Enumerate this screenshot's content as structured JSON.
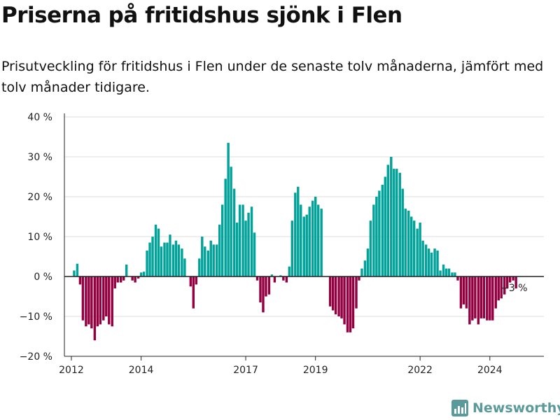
{
  "title": "Priserna på fritidshus sjönk i Flen",
  "subtitle": "Prisutveckling för fritidshus i Flen under de senaste tolv månaderna, jämfört med tolv månader tidigare.",
  "brand": "Newsworthy",
  "colors": {
    "positive": "#00a29a",
    "negative": "#930042",
    "axis": "#222222",
    "grid": "#dddddd",
    "brand": "#5a9a9a"
  },
  "chart_data": {
    "type": "bar",
    "title": "Priserna på fritidshus sjönk i Flen",
    "subtitle": "Prisutveckling för fritidshus i Flen under de senaste tolv månaderna, jämfört med tolv månader tidigare.",
    "xlabel": "",
    "ylabel": "",
    "ylim": [
      -20,
      40
    ],
    "y_ticks": [
      40,
      30,
      20,
      10,
      0,
      -10,
      -20
    ],
    "y_tick_labels": [
      "40 %",
      "30 %",
      "20 %",
      "10 %",
      "0 %",
      "−10 %",
      "−20 %"
    ],
    "x_ticks": [
      2012,
      2014,
      2017,
      2019,
      2022,
      2024
    ],
    "x_tick_labels": [
      "2012",
      "2014",
      "2017",
      "2019",
      "2022",
      "2024"
    ],
    "grid": true,
    "annotation": "−3 %",
    "series": [
      {
        "points": [
          {
            "x": 2012.08,
            "y": 1.5
          },
          {
            "x": 2012.17,
            "y": 3.2
          },
          {
            "x": 2012.25,
            "y": -2
          },
          {
            "x": 2012.33,
            "y": -11
          },
          {
            "x": 2012.42,
            "y": -12.5
          },
          {
            "x": 2012.5,
            "y": -12
          },
          {
            "x": 2012.58,
            "y": -13
          },
          {
            "x": 2012.67,
            "y": -16
          },
          {
            "x": 2012.75,
            "y": -12.5
          },
          {
            "x": 2012.83,
            "y": -12
          },
          {
            "x": 2012.92,
            "y": -11
          },
          {
            "x": 2013.0,
            "y": -10
          },
          {
            "x": 2013.08,
            "y": -12
          },
          {
            "x": 2013.17,
            "y": -12.5
          },
          {
            "x": 2013.25,
            "y": -3
          },
          {
            "x": 2013.33,
            "y": -1.5
          },
          {
            "x": 2013.42,
            "y": -1.5
          },
          {
            "x": 2013.5,
            "y": -1
          },
          {
            "x": 2013.58,
            "y": 3
          },
          {
            "x": 2013.67,
            "y": 0
          },
          {
            "x": 2013.75,
            "y": -1
          },
          {
            "x": 2013.83,
            "y": -1.5
          },
          {
            "x": 2013.92,
            "y": -0.5
          },
          {
            "x": 2014.0,
            "y": 1
          },
          {
            "x": 2014.08,
            "y": 1.2
          },
          {
            "x": 2014.17,
            "y": 6.5
          },
          {
            "x": 2014.25,
            "y": 8.5
          },
          {
            "x": 2014.33,
            "y": 10
          },
          {
            "x": 2014.42,
            "y": 13
          },
          {
            "x": 2014.5,
            "y": 12
          },
          {
            "x": 2014.58,
            "y": 7.5
          },
          {
            "x": 2014.67,
            "y": 8.5
          },
          {
            "x": 2014.75,
            "y": 8.5
          },
          {
            "x": 2014.83,
            "y": 10.5
          },
          {
            "x": 2014.92,
            "y": 8
          },
          {
            "x": 2015.0,
            "y": 9
          },
          {
            "x": 2015.08,
            "y": 8
          },
          {
            "x": 2015.17,
            "y": 7
          },
          {
            "x": 2015.25,
            "y": 4.5
          },
          {
            "x": 2015.33,
            "y": 0
          },
          {
            "x": 2015.42,
            "y": -2.5
          },
          {
            "x": 2015.5,
            "y": -8
          },
          {
            "x": 2015.58,
            "y": -2
          },
          {
            "x": 2015.67,
            "y": 4.5
          },
          {
            "x": 2015.75,
            "y": 10
          },
          {
            "x": 2015.83,
            "y": 7.5
          },
          {
            "x": 2015.92,
            "y": 6.5
          },
          {
            "x": 2016.0,
            "y": 9
          },
          {
            "x": 2016.08,
            "y": 8
          },
          {
            "x": 2016.17,
            "y": 8
          },
          {
            "x": 2016.25,
            "y": 13
          },
          {
            "x": 2016.33,
            "y": 18
          },
          {
            "x": 2016.42,
            "y": 24.5
          },
          {
            "x": 2016.5,
            "y": 33.5
          },
          {
            "x": 2016.58,
            "y": 27.5
          },
          {
            "x": 2016.67,
            "y": 22
          },
          {
            "x": 2016.75,
            "y": 13.5
          },
          {
            "x": 2016.83,
            "y": 18
          },
          {
            "x": 2016.92,
            "y": 18
          },
          {
            "x": 2017.0,
            "y": 14
          },
          {
            "x": 2017.08,
            "y": 16
          },
          {
            "x": 2017.17,
            "y": 17.5
          },
          {
            "x": 2017.25,
            "y": 11
          },
          {
            "x": 2017.33,
            "y": -1
          },
          {
            "x": 2017.42,
            "y": -6.5
          },
          {
            "x": 2017.5,
            "y": -9
          },
          {
            "x": 2017.58,
            "y": -5
          },
          {
            "x": 2017.67,
            "y": -4.5
          },
          {
            "x": 2017.75,
            "y": 0.5
          },
          {
            "x": 2017.83,
            "y": -1.5
          },
          {
            "x": 2017.92,
            "y": 0
          },
          {
            "x": 2018.0,
            "y": 0.3
          },
          {
            "x": 2018.08,
            "y": -1
          },
          {
            "x": 2018.17,
            "y": -1.5
          },
          {
            "x": 2018.25,
            "y": 2.5
          },
          {
            "x": 2018.33,
            "y": 14
          },
          {
            "x": 2018.42,
            "y": 21
          },
          {
            "x": 2018.5,
            "y": 22.5
          },
          {
            "x": 2018.58,
            "y": 18
          },
          {
            "x": 2018.67,
            "y": 15
          },
          {
            "x": 2018.75,
            "y": 15.5
          },
          {
            "x": 2018.83,
            "y": 17.5
          },
          {
            "x": 2018.92,
            "y": 19
          },
          {
            "x": 2019.0,
            "y": 20
          },
          {
            "x": 2019.08,
            "y": 18
          },
          {
            "x": 2019.17,
            "y": 17
          },
          {
            "x": 2019.25,
            "y": 0
          },
          {
            "x": 2019.33,
            "y": 0
          },
          {
            "x": 2019.42,
            "y": -7.5
          },
          {
            "x": 2019.5,
            "y": -8.5
          },
          {
            "x": 2019.58,
            "y": -9.5
          },
          {
            "x": 2019.67,
            "y": -10
          },
          {
            "x": 2019.75,
            "y": -10.5
          },
          {
            "x": 2019.83,
            "y": -12
          },
          {
            "x": 2019.92,
            "y": -14
          },
          {
            "x": 2020.0,
            "y": -14
          },
          {
            "x": 2020.08,
            "y": -13
          },
          {
            "x": 2020.17,
            "y": -8
          },
          {
            "x": 2020.25,
            "y": -1
          },
          {
            "x": 2020.33,
            "y": 2
          },
          {
            "x": 2020.42,
            "y": 4
          },
          {
            "x": 2020.5,
            "y": 7
          },
          {
            "x": 2020.58,
            "y": 14
          },
          {
            "x": 2020.67,
            "y": 18
          },
          {
            "x": 2020.75,
            "y": 20
          },
          {
            "x": 2020.83,
            "y": 21.5
          },
          {
            "x": 2020.92,
            "y": 23
          },
          {
            "x": 2021.0,
            "y": 25
          },
          {
            "x": 2021.08,
            "y": 28
          },
          {
            "x": 2021.17,
            "y": 30
          },
          {
            "x": 2021.25,
            "y": 27
          },
          {
            "x": 2021.33,
            "y": 27
          },
          {
            "x": 2021.42,
            "y": 26
          },
          {
            "x": 2021.5,
            "y": 22
          },
          {
            "x": 2021.58,
            "y": 17
          },
          {
            "x": 2021.67,
            "y": 16.5
          },
          {
            "x": 2021.75,
            "y": 15
          },
          {
            "x": 2021.83,
            "y": 14
          },
          {
            "x": 2021.92,
            "y": 12
          },
          {
            "x": 2022.0,
            "y": 13.5
          },
          {
            "x": 2022.08,
            "y": 9
          },
          {
            "x": 2022.17,
            "y": 8
          },
          {
            "x": 2022.25,
            "y": 7
          },
          {
            "x": 2022.33,
            "y": 6
          },
          {
            "x": 2022.42,
            "y": 7
          },
          {
            "x": 2022.5,
            "y": 6.5
          },
          {
            "x": 2022.58,
            "y": 1.5
          },
          {
            "x": 2022.67,
            "y": 3
          },
          {
            "x": 2022.75,
            "y": 2
          },
          {
            "x": 2022.83,
            "y": 2
          },
          {
            "x": 2022.92,
            "y": 1
          },
          {
            "x": 2023.0,
            "y": 1
          },
          {
            "x": 2023.08,
            "y": -1
          },
          {
            "x": 2023.17,
            "y": -8
          },
          {
            "x": 2023.25,
            "y": -7
          },
          {
            "x": 2023.33,
            "y": -8
          },
          {
            "x": 2023.42,
            "y": -12
          },
          {
            "x": 2023.5,
            "y": -11
          },
          {
            "x": 2023.58,
            "y": -10.5
          },
          {
            "x": 2023.67,
            "y": -12
          },
          {
            "x": 2023.75,
            "y": -10.5
          },
          {
            "x": 2023.83,
            "y": -10.5
          },
          {
            "x": 2023.92,
            "y": -11
          },
          {
            "x": 2024.0,
            "y": -11
          },
          {
            "x": 2024.08,
            "y": -11
          },
          {
            "x": 2024.17,
            "y": -8
          },
          {
            "x": 2024.25,
            "y": -6
          },
          {
            "x": 2024.33,
            "y": -5.5
          },
          {
            "x": 2024.42,
            "y": -4.5
          },
          {
            "x": 2024.5,
            "y": -3
          },
          {
            "x": 2024.58,
            "y": -1.5
          },
          {
            "x": 2024.67,
            "y": -1
          },
          {
            "x": 2024.75,
            "y": -3
          }
        ]
      }
    ]
  }
}
